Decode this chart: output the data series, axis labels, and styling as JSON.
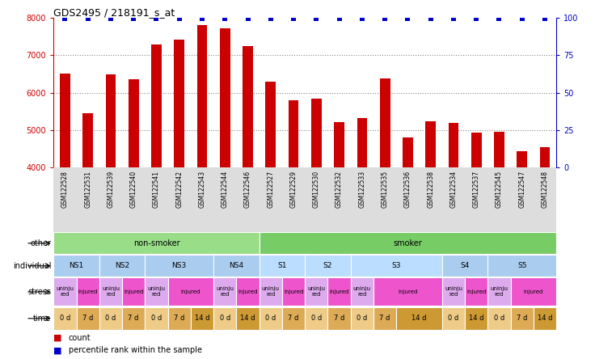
{
  "title": "GDS2495 / 218191_s_at",
  "samples": [
    "GSM122528",
    "GSM122531",
    "GSM122539",
    "GSM122540",
    "GSM122541",
    "GSM122542",
    "GSM122543",
    "GSM122544",
    "GSM122546",
    "GSM122527",
    "GSM122529",
    "GSM122530",
    "GSM122532",
    "GSM122533",
    "GSM122535",
    "GSM122536",
    "GSM122538",
    "GSM122534",
    "GSM122537",
    "GSM122545",
    "GSM122547",
    "GSM122548"
  ],
  "counts": [
    6500,
    5450,
    6480,
    6350,
    7290,
    7430,
    7820,
    7730,
    7240,
    6300,
    5790,
    5830,
    5200,
    5320,
    6380,
    4810,
    5240,
    5190,
    4920,
    4950,
    4430,
    4550
  ],
  "ylim_left": [
    4000,
    8000
  ],
  "ylim_right": [
    0,
    100
  ],
  "bar_color": "#cc0000",
  "dot_color": "#0000cc",
  "grid_color": "#888888",
  "bg_color": "#ffffff",
  "label_bg": "#dddddd",
  "other_groups": [
    {
      "label": "non-smoker",
      "start": 0,
      "end": 9,
      "color": "#99dd88"
    },
    {
      "label": "smoker",
      "start": 9,
      "end": 22,
      "color": "#77cc66"
    }
  ],
  "individual_groups": [
    {
      "label": "NS1",
      "start": 0,
      "end": 2,
      "color": "#aaccee"
    },
    {
      "label": "NS2",
      "start": 2,
      "end": 4,
      "color": "#aaccee"
    },
    {
      "label": "NS3",
      "start": 4,
      "end": 7,
      "color": "#aaccee"
    },
    {
      "label": "NS4",
      "start": 7,
      "end": 9,
      "color": "#aaccee"
    },
    {
      "label": "S1",
      "start": 9,
      "end": 11,
      "color": "#bbddff"
    },
    {
      "label": "S2",
      "start": 11,
      "end": 13,
      "color": "#bbddff"
    },
    {
      "label": "S3",
      "start": 13,
      "end": 17,
      "color": "#bbddff"
    },
    {
      "label": "S4",
      "start": 17,
      "end": 19,
      "color": "#aaccee"
    },
    {
      "label": "S5",
      "start": 19,
      "end": 22,
      "color": "#aaccee"
    }
  ],
  "stress_groups": [
    {
      "label": "uninjured",
      "start": 0,
      "end": 1,
      "color": "#ddaaee"
    },
    {
      "label": "injured",
      "start": 1,
      "end": 2,
      "color": "#ee55cc"
    },
    {
      "label": "uninjured",
      "start": 2,
      "end": 3,
      "color": "#ddaaee"
    },
    {
      "label": "injured",
      "start": 3,
      "end": 4,
      "color": "#ee55cc"
    },
    {
      "label": "uninjured",
      "start": 4,
      "end": 5,
      "color": "#ddaaee"
    },
    {
      "label": "injured",
      "start": 5,
      "end": 7,
      "color": "#ee55cc"
    },
    {
      "label": "uninjured",
      "start": 7,
      "end": 8,
      "color": "#ddaaee"
    },
    {
      "label": "injured",
      "start": 8,
      "end": 9,
      "color": "#ee55cc"
    },
    {
      "label": "uninjured",
      "start": 9,
      "end": 10,
      "color": "#ddaaee"
    },
    {
      "label": "injured",
      "start": 10,
      "end": 11,
      "color": "#ee55cc"
    },
    {
      "label": "uninjured",
      "start": 11,
      "end": 12,
      "color": "#ddaaee"
    },
    {
      "label": "injured",
      "start": 12,
      "end": 13,
      "color": "#ee55cc"
    },
    {
      "label": "uninjured",
      "start": 13,
      "end": 14,
      "color": "#ddaaee"
    },
    {
      "label": "injured",
      "start": 14,
      "end": 17,
      "color": "#ee55cc"
    },
    {
      "label": "uninjured",
      "start": 17,
      "end": 18,
      "color": "#ddaaee"
    },
    {
      "label": "injured",
      "start": 18,
      "end": 19,
      "color": "#ee55cc"
    },
    {
      "label": "uninjured",
      "start": 19,
      "end": 20,
      "color": "#ddaaee"
    },
    {
      "label": "injured",
      "start": 20,
      "end": 22,
      "color": "#ee55cc"
    }
  ],
  "time_groups": [
    {
      "label": "0 d",
      "start": 0,
      "end": 1,
      "color": "#eecc88"
    },
    {
      "label": "7 d",
      "start": 1,
      "end": 2,
      "color": "#ddaa55"
    },
    {
      "label": "0 d",
      "start": 2,
      "end": 3,
      "color": "#eecc88"
    },
    {
      "label": "7 d",
      "start": 3,
      "end": 4,
      "color": "#ddaa55"
    },
    {
      "label": "0 d",
      "start": 4,
      "end": 5,
      "color": "#eecc88"
    },
    {
      "label": "7 d",
      "start": 5,
      "end": 6,
      "color": "#ddaa55"
    },
    {
      "label": "14 d",
      "start": 6,
      "end": 7,
      "color": "#cc9933"
    },
    {
      "label": "0 d",
      "start": 7,
      "end": 8,
      "color": "#eecc88"
    },
    {
      "label": "14 d",
      "start": 8,
      "end": 9,
      "color": "#cc9933"
    },
    {
      "label": "0 d",
      "start": 9,
      "end": 10,
      "color": "#eecc88"
    },
    {
      "label": "7 d",
      "start": 10,
      "end": 11,
      "color": "#ddaa55"
    },
    {
      "label": "0 d",
      "start": 11,
      "end": 12,
      "color": "#eecc88"
    },
    {
      "label": "7 d",
      "start": 12,
      "end": 13,
      "color": "#ddaa55"
    },
    {
      "label": "0 d",
      "start": 13,
      "end": 14,
      "color": "#eecc88"
    },
    {
      "label": "7 d",
      "start": 14,
      "end": 15,
      "color": "#ddaa55"
    },
    {
      "label": "14 d",
      "start": 15,
      "end": 17,
      "color": "#cc9933"
    },
    {
      "label": "0 d",
      "start": 17,
      "end": 18,
      "color": "#eecc88"
    },
    {
      "label": "14 d",
      "start": 18,
      "end": 19,
      "color": "#cc9933"
    },
    {
      "label": "0 d",
      "start": 19,
      "end": 20,
      "color": "#eecc88"
    },
    {
      "label": "7 d",
      "start": 20,
      "end": 21,
      "color": "#ddaa55"
    },
    {
      "label": "14 d",
      "start": 21,
      "end": 22,
      "color": "#cc9933"
    }
  ]
}
